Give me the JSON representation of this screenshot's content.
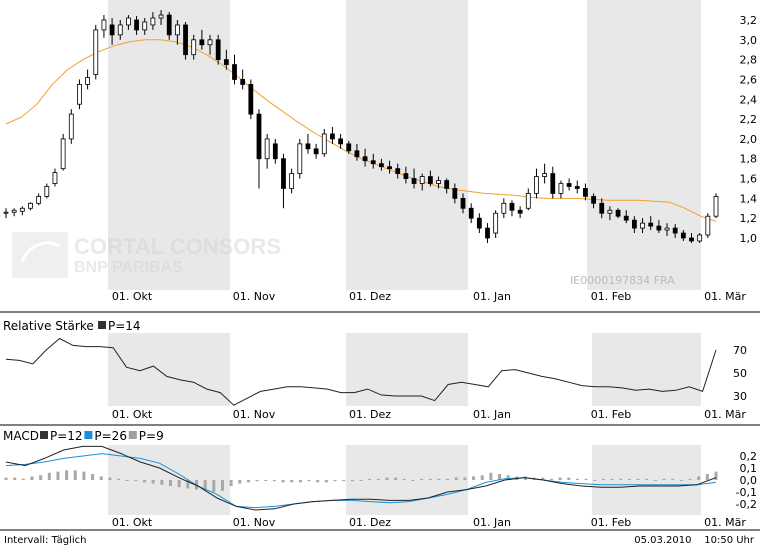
{
  "main_chart": {
    "watermark_lines": [
      "CORTAL CONSORS",
      "BNP PARIBAS"
    ],
    "isin_label": "IE0000197834 FRA",
    "y_ticks": [
      "3,2",
      "3,0",
      "2,8",
      "2,6",
      "2,4",
      "2,2",
      "2,0",
      "1,8",
      "1,6",
      "1,4",
      "1,2",
      "1,0"
    ],
    "x_ticks": [
      "01. Okt",
      "01. Nov",
      "01. Dez",
      "01. Jan",
      "01. Feb",
      "01. Mär"
    ]
  },
  "rsi_panel": {
    "title": "Relative Stärke",
    "legend": [
      {
        "label": "P=14",
        "color": "#333333"
      }
    ],
    "y_ticks": [
      "70",
      "50",
      "30"
    ],
    "x_ticks": [
      "01. Okt",
      "01. Nov",
      "01. Dez",
      "01. Jan",
      "01. Feb",
      "01. Mär"
    ]
  },
  "macd_panel": {
    "title": "MACD",
    "legend": [
      {
        "label": "P=12",
        "color": "#333333"
      },
      {
        "label": "P=26",
        "color": "#1a8fd8"
      },
      {
        "label": "P=9",
        "color": "#a0a0a0"
      }
    ],
    "y_ticks": [
      "0,2",
      "0,1",
      "0,0",
      "-0,1",
      "-0,2"
    ],
    "x_ticks": [
      "01. Okt",
      "01. Nov",
      "01. Dez",
      "01. Jan",
      "01. Feb",
      "01. Mär"
    ]
  },
  "footer": {
    "interval": "Intervall: Täglich",
    "date": "05.03.2010",
    "time": "10:50 Uhr"
  },
  "colors": {
    "ma_line": "#f0a030",
    "candle": "#000000",
    "shade": "#e8e8e8",
    "macd_signal": "#1a8fd8",
    "histogram": "#a8a8a8"
  },
  "chart_data": [
    {
      "type": "candlestick",
      "x_range": [
        "2009-09-07",
        "2010-03-05"
      ],
      "ylim": [
        0.85,
        3.3
      ],
      "ohlc": [
        [
          1.25,
          1.3,
          1.2,
          1.26
        ],
        [
          1.26,
          1.3,
          1.22,
          1.28
        ],
        [
          1.27,
          1.32,
          1.23,
          1.3
        ],
        [
          1.3,
          1.36,
          1.28,
          1.35
        ],
        [
          1.35,
          1.45,
          1.33,
          1.42
        ],
        [
          1.42,
          1.55,
          1.4,
          1.52
        ],
        [
          1.55,
          1.7,
          1.52,
          1.66
        ],
        [
          1.7,
          2.05,
          1.68,
          2.0
        ],
        [
          2.0,
          2.3,
          1.95,
          2.25
        ],
        [
          2.35,
          2.6,
          2.3,
          2.55
        ],
        [
          2.55,
          2.7,
          2.5,
          2.62
        ],
        [
          2.65,
          3.15,
          2.6,
          3.1
        ],
        [
          3.1,
          3.25,
          3.02,
          3.2
        ],
        [
          3.15,
          3.22,
          2.95,
          3.05
        ],
        [
          3.05,
          3.2,
          3.0,
          3.15
        ],
        [
          3.15,
          3.25,
          3.1,
          3.22
        ],
        [
          3.2,
          3.24,
          3.05,
          3.1
        ],
        [
          3.1,
          3.22,
          3.05,
          3.18
        ],
        [
          3.15,
          3.28,
          3.1,
          3.22
        ],
        [
          3.22,
          3.3,
          3.15,
          3.25
        ],
        [
          3.25,
          3.28,
          3.0,
          3.05
        ],
        [
          3.05,
          3.2,
          2.95,
          3.15
        ],
        [
          3.15,
          3.18,
          2.8,
          2.85
        ],
        [
          2.85,
          3.05,
          2.8,
          3.0
        ],
        [
          3.0,
          3.1,
          2.9,
          2.95
        ],
        [
          2.95,
          3.05,
          2.85,
          3.0
        ],
        [
          3.0,
          3.05,
          2.75,
          2.8
        ],
        [
          2.8,
          2.9,
          2.7,
          2.75
        ],
        [
          2.75,
          2.85,
          2.55,
          2.6
        ],
        [
          2.6,
          2.7,
          2.5,
          2.55
        ],
        [
          2.55,
          2.6,
          2.2,
          2.25
        ],
        [
          2.25,
          2.3,
          1.5,
          1.8
        ],
        [
          1.8,
          2.05,
          1.7,
          2.0
        ],
        [
          1.95,
          2.0,
          1.75,
          1.8
        ],
        [
          1.8,
          1.85,
          1.3,
          1.5
        ],
        [
          1.5,
          1.7,
          1.45,
          1.65
        ],
        [
          1.65,
          2.0,
          1.6,
          1.95
        ],
        [
          1.95,
          2.05,
          1.85,
          1.9
        ],
        [
          1.9,
          1.95,
          1.8,
          1.85
        ],
        [
          1.85,
          2.1,
          1.82,
          2.05
        ],
        [
          2.05,
          2.12,
          1.95,
          2.0
        ],
        [
          2.0,
          2.05,
          1.9,
          1.95
        ],
        [
          1.95,
          1.98,
          1.85,
          1.88
        ],
        [
          1.88,
          1.95,
          1.78,
          1.82
        ],
        [
          1.82,
          1.9,
          1.72,
          1.78
        ],
        [
          1.78,
          1.85,
          1.7,
          1.75
        ],
        [
          1.75,
          1.8,
          1.68,
          1.72
        ],
        [
          1.72,
          1.78,
          1.65,
          1.7
        ],
        [
          1.7,
          1.75,
          1.6,
          1.65
        ],
        [
          1.65,
          1.72,
          1.55,
          1.6
        ],
        [
          1.6,
          1.7,
          1.5,
          1.55
        ],
        [
          1.55,
          1.65,
          1.48,
          1.62
        ],
        [
          1.62,
          1.68,
          1.52,
          1.55
        ],
        [
          1.55,
          1.62,
          1.5,
          1.58
        ],
        [
          1.58,
          1.6,
          1.45,
          1.5
        ],
        [
          1.5,
          1.55,
          1.35,
          1.4
        ],
        [
          1.4,
          1.45,
          1.25,
          1.3
        ],
        [
          1.3,
          1.35,
          1.15,
          1.2
        ],
        [
          1.2,
          1.25,
          1.05,
          1.1
        ],
        [
          1.1,
          1.15,
          0.95,
          1.0
        ],
        [
          1.05,
          1.28,
          1.0,
          1.25
        ],
        [
          1.25,
          1.4,
          1.2,
          1.35
        ],
        [
          1.35,
          1.38,
          1.22,
          1.28
        ],
        [
          1.28,
          1.32,
          1.2,
          1.25
        ],
        [
          1.3,
          1.5,
          1.28,
          1.45
        ],
        [
          1.45,
          1.7,
          1.4,
          1.62
        ],
        [
          1.62,
          1.75,
          1.55,
          1.65
        ],
        [
          1.65,
          1.72,
          1.4,
          1.45
        ],
        [
          1.45,
          1.58,
          1.4,
          1.55
        ],
        [
          1.55,
          1.6,
          1.48,
          1.52
        ],
        [
          1.52,
          1.58,
          1.45,
          1.5
        ],
        [
          1.5,
          1.55,
          1.38,
          1.42
        ],
        [
          1.42,
          1.45,
          1.3,
          1.35
        ],
        [
          1.35,
          1.4,
          1.2,
          1.25
        ],
        [
          1.25,
          1.32,
          1.18,
          1.28
        ],
        [
          1.28,
          1.3,
          1.2,
          1.22
        ],
        [
          1.22,
          1.28,
          1.15,
          1.18
        ],
        [
          1.18,
          1.22,
          1.05,
          1.1
        ],
        [
          1.1,
          1.2,
          1.05,
          1.15
        ],
        [
          1.15,
          1.22,
          1.08,
          1.12
        ],
        [
          1.12,
          1.18,
          1.05,
          1.08
        ],
        [
          1.08,
          1.15,
          1.02,
          1.1
        ],
        [
          1.1,
          1.14,
          1.0,
          1.05
        ],
        [
          1.05,
          1.08,
          0.97,
          1.0
        ],
        [
          1.0,
          1.05,
          0.95,
          0.97
        ],
        [
          0.97,
          1.05,
          0.95,
          1.03
        ],
        [
          1.03,
          1.25,
          1.0,
          1.22
        ],
        [
          1.22,
          1.45,
          1.2,
          1.42
        ]
      ]
    },
    {
      "type": "line",
      "name": "Moving average",
      "x_range": [
        "2009-09-07",
        "2010-03-05"
      ],
      "values": [
        2.15,
        2.22,
        2.35,
        2.55,
        2.7,
        2.8,
        2.88,
        2.94,
        2.98,
        3.0,
        3.0,
        2.98,
        2.93,
        2.85,
        2.75,
        2.63,
        2.5,
        2.38,
        2.27,
        2.16,
        2.06,
        1.97,
        1.88,
        1.8,
        1.74,
        1.68,
        1.62,
        1.57,
        1.52,
        1.49,
        1.47,
        1.45,
        1.44,
        1.43,
        1.41,
        1.4,
        1.4,
        1.4,
        1.39,
        1.38,
        1.38,
        1.38,
        1.37,
        1.36,
        1.3,
        1.22,
        1.17
      ]
    },
    {
      "type": "line",
      "name": "Relative Stärke P=14",
      "ylim": [
        20,
        90
      ],
      "values": [
        62,
        61,
        58,
        70,
        80,
        74,
        73,
        73,
        72,
        55,
        52,
        56,
        47,
        44,
        42,
        36,
        33,
        22,
        28,
        34,
        36,
        38,
        38,
        37,
        36,
        33,
        33,
        36,
        31,
        30,
        30,
        30,
        26,
        40,
        42,
        40,
        38,
        52,
        53,
        50,
        47,
        45,
        42,
        39,
        38,
        38,
        37,
        35,
        36,
        34,
        35,
        38,
        34,
        70
      ]
    },
    {
      "type": "line",
      "name": "MACD P=12",
      "ylim": [
        -0.25,
        0.25
      ],
      "values": [
        0.15,
        0.12,
        0.18,
        0.25,
        0.28,
        0.28,
        0.22,
        0.15,
        0.1,
        0.02,
        -0.05,
        -0.15,
        -0.22,
        -0.25,
        -0.24,
        -0.2,
        -0.18,
        -0.17,
        -0.16,
        -0.16,
        -0.17,
        -0.17,
        -0.15,
        -0.1,
        -0.08,
        -0.05,
        0.0,
        0.02,
        0.0,
        -0.03,
        -0.05,
        -0.06,
        -0.06,
        -0.05,
        -0.05,
        -0.05,
        -0.04,
        0.02
      ]
    },
    {
      "type": "line",
      "name": "MACD P=26",
      "ylim": [
        -0.25,
        0.25
      ],
      "values": [
        0.12,
        0.13,
        0.15,
        0.18,
        0.2,
        0.22,
        0.2,
        0.18,
        0.14,
        0.05,
        -0.05,
        -0.12,
        -0.22,
        -0.23,
        -0.22,
        -0.2,
        -0.18,
        -0.17,
        -0.17,
        -0.18,
        -0.19,
        -0.18,
        -0.15,
        -0.12,
        -0.08,
        -0.02,
        0.01,
        0.02,
        0.0,
        -0.02,
        -0.03,
        -0.04,
        -0.04,
        -0.04,
        -0.04,
        -0.04,
        -0.04,
        -0.02
      ]
    },
    {
      "type": "bar",
      "name": "MACD P=9",
      "ylim": [
        -0.25,
        0.25
      ],
      "values": [
        0.02,
        0.02,
        0.01,
        0.03,
        0.04,
        0.06,
        0.07,
        0.08,
        0.08,
        0.07,
        0.05,
        0.03,
        0.02,
        0.01,
        0.0,
        -0.01,
        -0.02,
        -0.03,
        -0.04,
        -0.05,
        -0.06,
        -0.07,
        -0.08,
        -0.09,
        -0.1,
        -0.09,
        -0.05,
        -0.03,
        -0.02,
        -0.01,
        0.0,
        -0.01,
        -0.02,
        -0.02,
        -0.02,
        -0.01,
        -0.02,
        -0.02,
        -0.01,
        -0.01,
        -0.01,
        0.0,
        0.01,
        0.01,
        0.02,
        0.02,
        0.01,
        0.0,
        0.01,
        0.01,
        0.01,
        0.01,
        0.02,
        0.02,
        0.03,
        0.04,
        0.06,
        0.05,
        0.04,
        0.03,
        0.03,
        0.02,
        0.02,
        0.01,
        0.02,
        0.02,
        0.01,
        0.01,
        0.0,
        0.01,
        0.01,
        0.01,
        0.01,
        0.01,
        0.01,
        0.0,
        0.01,
        0.01,
        0.0,
        0.01,
        0.03,
        0.05,
        0.07
      ]
    }
  ]
}
